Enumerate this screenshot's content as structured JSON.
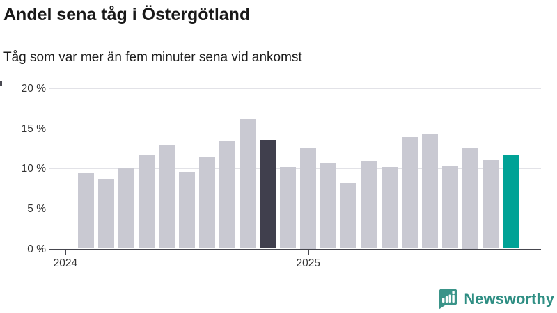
{
  "header": {
    "title": "Andel sena tåg i Östergötland",
    "subtitle": "Tåg som var mer än fem minuter sena vid ankomst"
  },
  "chart_data": {
    "type": "bar",
    "title": "Andel sena tåg i Östergötland",
    "subtitle": "Tåg som var mer än fem minuter sena vid ankomst",
    "unit": "percent",
    "categories": [
      "feb 2024",
      "mar 2024",
      "apr 2024",
      "maj 2024",
      "jun 2024",
      "jul 2024",
      "aug 2024",
      "sep 2024",
      "okt 2024",
      "nov 2024",
      "dec 2024",
      "jan 2025",
      "feb 2025",
      "mar 2025",
      "apr 2025",
      "maj 2025",
      "jun 2025",
      "jul 2025",
      "aug 2025",
      "sep 2025",
      "okt 2025",
      "nov 2025"
    ],
    "values": [
      9.4,
      8.7,
      10.1,
      11.7,
      13.0,
      9.5,
      11.4,
      13.5,
      16.2,
      13.6,
      10.2,
      12.5,
      10.7,
      8.2,
      11.0,
      10.2,
      13.9,
      14.4,
      10.3,
      12.5,
      11.1,
      11.7
    ],
    "highlighted_dark_index": 9,
    "highlighted_accent_index": 21,
    "ylim": [
      0,
      20
    ],
    "yticks": [
      0,
      5,
      10,
      15,
      20
    ],
    "ytick_labels": [
      "0 %",
      "5 %",
      "10 %",
      "15 %",
      "20 %"
    ],
    "xticks": [
      {
        "label": "2024",
        "month_offset": -1
      },
      {
        "label": "2025",
        "month_offset": 11
      }
    ],
    "grid": "horizontal",
    "legend": "none",
    "colors": {
      "bar_default": "#c9c9d2",
      "bar_dark": "#403f4d",
      "bar_accent": "#00a296",
      "gridline": "#e2e2e7",
      "axis": "#46464e",
      "tick_text": "#333333"
    }
  },
  "footer": {
    "brand": "Newsworthy",
    "brand_color": "#2e8e83"
  }
}
